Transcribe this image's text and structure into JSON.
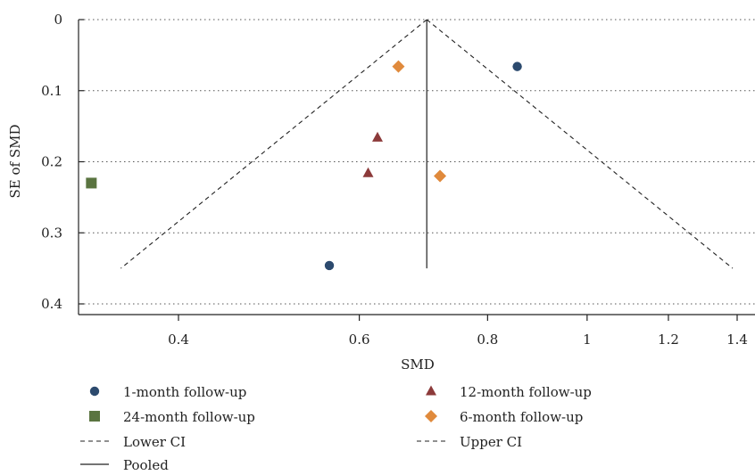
{
  "chart_data": {
    "type": "scatter",
    "title": "",
    "xlabel": "SMD",
    "ylabel": "SE of SMD",
    "x_scale": "log",
    "x_ticks": [
      0.4,
      0.6,
      0.8,
      1,
      1.2,
      1.4
    ],
    "x_tick_labels": [
      "0.4",
      "0.6",
      "0.8",
      "1",
      "1.2",
      "1.4"
    ],
    "y_ticks": [
      0,
      0.1,
      0.2,
      0.3,
      0.4
    ],
    "y_tick_labels": [
      "0",
      "0.1",
      "0.2",
      "0.3",
      "0.4"
    ],
    "y_reversed": true,
    "ylim": [
      0,
      0.4
    ],
    "grid": "horizontal-dotted",
    "legend_position": "bottom",
    "series": [
      {
        "name": "1-month follow-up",
        "marker": "circle",
        "color": "#2c4a6e",
        "points": [
          {
            "x": 0.855,
            "y": 0.066
          },
          {
            "x": 0.561,
            "y": 0.346
          }
        ]
      },
      {
        "name": "12-month follow-up",
        "marker": "triangle",
        "color": "#8c3a3a",
        "points": [
          {
            "x": 0.625,
            "y": 0.166
          },
          {
            "x": 0.612,
            "y": 0.216
          }
        ]
      },
      {
        "name": "24-month follow-up",
        "marker": "square",
        "color": "#5a7440",
        "points": [
          {
            "x": 0.329,
            "y": 0.23
          }
        ]
      },
      {
        "name": "6-month follow-up",
        "marker": "diamond",
        "color": "#e08a3c",
        "points": [
          {
            "x": 0.655,
            "y": 0.066
          },
          {
            "x": 0.719,
            "y": 0.22
          }
        ]
      }
    ],
    "pooled": {
      "name": "Pooled",
      "x": 0.698,
      "style": "solid"
    },
    "ci_lines": [
      {
        "name": "Lower CI",
        "style": "dashed"
      },
      {
        "name": "Upper CI",
        "style": "dashed"
      }
    ],
    "ci_se_max": 0.35,
    "ci_multiplier": 1.96
  },
  "legend": [
    {
      "label": "1-month follow-up",
      "symbol": "circle",
      "color": "#2c4a6e"
    },
    {
      "label": "12-month follow-up",
      "symbol": "triangle",
      "color": "#8c3a3a"
    },
    {
      "label": "24-month follow-up",
      "symbol": "square",
      "color": "#5a7440"
    },
    {
      "label": "6-month follow-up",
      "symbol": "diamond",
      "color": "#e08a3c"
    },
    {
      "label": "Lower CI",
      "symbol": "dashed-line",
      "color": "#222222"
    },
    {
      "label": "Upper CI",
      "symbol": "dashed-line",
      "color": "#222222"
    },
    {
      "label": "Pooled",
      "symbol": "solid-line",
      "color": "#222222"
    }
  ]
}
